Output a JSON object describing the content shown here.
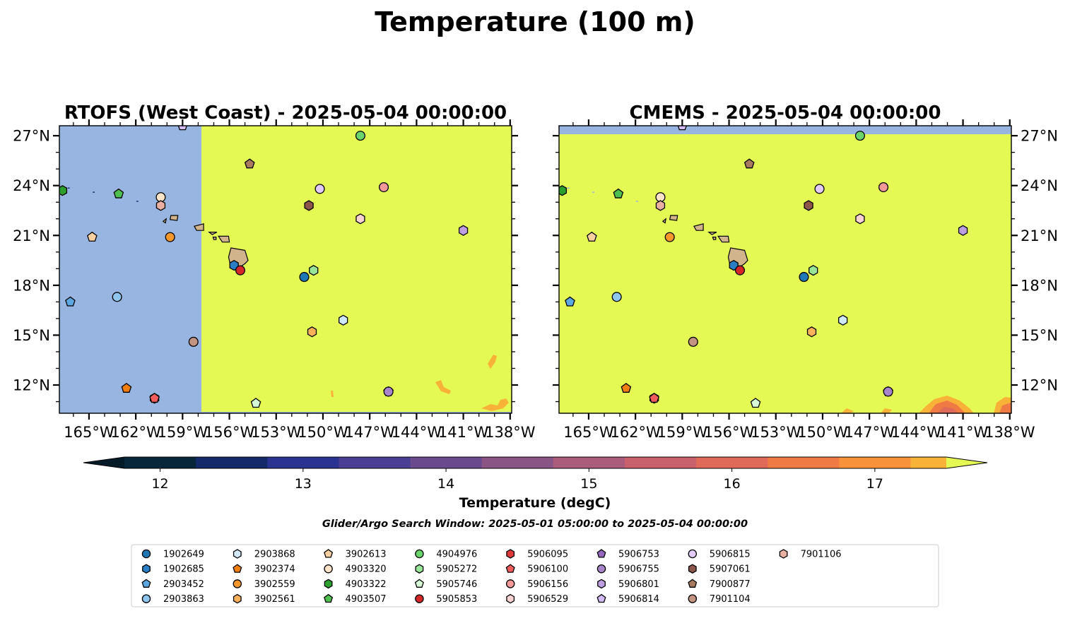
{
  "figure": {
    "title": "Temperature (100 m)",
    "note": "Glider/Argo Search Window: 2025-05-01 05:00:00 to 2025-05-04 00:00:00"
  },
  "colors": {
    "land": "#d2b48c",
    "no_data": "#98b5e1",
    "warm_fill": "#e5f954"
  },
  "chart_data": [
    {
      "type": "map",
      "title": "RTOFS (West Coast) - 2025-05-04 00:00:00",
      "extent": {
        "lon": [
          -166.9,
          -137.9
        ],
        "lat": [
          10.3,
          27.6
        ]
      },
      "x_ticks": [
        "165°W",
        "162°W",
        "159°W",
        "156°W",
        "153°W",
        "150°W",
        "147°W",
        "144°W",
        "141°W",
        "138°W"
      ],
      "y_ticks": [
        "12°N",
        "15°N",
        "18°N",
        "21°N",
        "24°N",
        "27°N"
      ],
      "y_axis_side": "left",
      "field": "RTOFS domain covers lon >= -157.8; west of that is no data"
    },
    {
      "type": "map",
      "title": "CMEMS - 2025-05-04 00:00:00",
      "extent": {
        "lon": [
          -166.9,
          -137.9
        ],
        "lat": [
          10.3,
          27.6
        ]
      },
      "x_ticks": [
        "165°W",
        "162°W",
        "159°W",
        "156°W",
        "153°W",
        "150°W",
        "147°W",
        "144°W",
        "141°W",
        "138°W"
      ],
      "y_ticks": [
        "12°N",
        "15°N",
        "18°N",
        "21°N",
        "24°N",
        "27°N"
      ],
      "y_axis_side": "right",
      "field": "CMEMS; band north of ~27.1°N has no data; cooler patches along southern edge"
    }
  ],
  "colorbar": {
    "label": "Temperature (degC)",
    "min": 11.75,
    "max": 17.5,
    "extend": "both",
    "ticks": [
      "12",
      "13",
      "14",
      "15",
      "16",
      "17"
    ],
    "tick_values": [
      12,
      13,
      14,
      15,
      16,
      17
    ],
    "level_colors": [
      "#08263a",
      "#13296a",
      "#2a3392",
      "#4a3e94",
      "#6a4a8c",
      "#8a5485",
      "#ac5c7b",
      "#c8616c",
      "#df6a59",
      "#ef7a43",
      "#f7923a",
      "#f8b238",
      "#f3d243"
    ],
    "under_color": "#031a28",
    "over_color": "#e5f954"
  },
  "floats": [
    {
      "id": "1902649",
      "marker": "circle",
      "color": "#1f77b4",
      "lon": -151.2,
      "lat": 18.5
    },
    {
      "id": "1902685",
      "marker": "hexagon",
      "color": "#2a7fc5",
      "lon": -155.7,
      "lat": 19.2
    },
    {
      "id": "2903452",
      "marker": "pentagon",
      "color": "#5da7e0",
      "lon": -166.2,
      "lat": 17.0
    },
    {
      "id": "2903863",
      "marker": "circle",
      "color": "#8ec6ee",
      "lon": -163.2,
      "lat": 17.3
    },
    {
      "id": "2903868",
      "marker": "hexagon",
      "color": "#cfe9fb",
      "lon": -148.7,
      "lat": 15.9
    },
    {
      "id": "3902374",
      "marker": "pentagon",
      "color": "#f07f10",
      "lon": -162.6,
      "lat": 11.8
    },
    {
      "id": "3902559",
      "marker": "circle",
      "color": "#f7962a",
      "lon": -159.8,
      "lat": 20.9
    },
    {
      "id": "3902561",
      "marker": "hexagon",
      "color": "#fbb159",
      "lon": -150.7,
      "lat": 15.2
    },
    {
      "id": "3902613",
      "marker": "pentagon",
      "color": "#fdd0a2",
      "lon": -164.8,
      "lat": 20.9
    },
    {
      "id": "4903320",
      "marker": "circle",
      "color": "#fde3c8",
      "lon": -160.4,
      "lat": 23.3
    },
    {
      "id": "4903322",
      "marker": "hexagon",
      "color": "#2ca02c",
      "lon": -166.7,
      "lat": 23.7
    },
    {
      "id": "4903507",
      "marker": "pentagon",
      "color": "#4fbf4f",
      "lon": -163.1,
      "lat": 23.5
    },
    {
      "id": "4904976",
      "marker": "circle",
      "color": "#6ad46a",
      "lon": -147.6,
      "lat": 27.0
    },
    {
      "id": "5905272",
      "marker": "hexagon",
      "color": "#98e498",
      "lon": -150.6,
      "lat": 18.9
    },
    {
      "id": "5905746",
      "marker": "pentagon",
      "color": "#d6f8d4",
      "lon": -154.3,
      "lat": 10.9
    },
    {
      "id": "5905853",
      "marker": "circle",
      "color": "#d62728",
      "lon": -155.3,
      "lat": 18.9
    },
    {
      "id": "5906095",
      "marker": "hexagon",
      "color": "#e0393a",
      "lon": -160.8,
      "lat": 11.2
    },
    {
      "id": "5906100",
      "marker": "pentagon",
      "color": "#f15d5d",
      "lon": -160.8,
      "lat": 11.2
    },
    {
      "id": "5906156",
      "marker": "circle",
      "color": "#f49898",
      "lon": -146.1,
      "lat": 23.9
    },
    {
      "id": "5906529",
      "marker": "hexagon",
      "color": "#fcd2d2",
      "lon": -147.6,
      "lat": 22.0
    },
    {
      "id": "5906753",
      "marker": "pentagon",
      "color": "#9467bd",
      "lon": -145.8,
      "lat": 11.6
    },
    {
      "id": "5906755",
      "marker": "circle",
      "color": "#a885cb",
      "lon": -145.8,
      "lat": 11.6
    },
    {
      "id": "5906801",
      "marker": "hexagon",
      "color": "#bd9ee0",
      "lon": -141.0,
      "lat": 21.3
    },
    {
      "id": "5906814",
      "marker": "pentagon",
      "color": "#d3bbf5",
      "lon": -159.0,
      "lat": 27.6
    },
    {
      "id": "5906815",
      "marker": "circle",
      "color": "#e2cbf6",
      "lon": -150.2,
      "lat": 23.8
    },
    {
      "id": "5907061",
      "marker": "hexagon",
      "color": "#8c564b",
      "lon": -150.9,
      "lat": 22.8
    },
    {
      "id": "7900877",
      "marker": "pentagon",
      "color": "#a87a60",
      "lon": -154.7,
      "lat": 25.3
    },
    {
      "id": "7901104",
      "marker": "circle",
      "color": "#c49482",
      "lon": -158.3,
      "lat": 14.6
    },
    {
      "id": "7901106",
      "marker": "hexagon",
      "color": "#e9b0a2",
      "lon": -160.4,
      "lat": 22.8
    }
  ]
}
